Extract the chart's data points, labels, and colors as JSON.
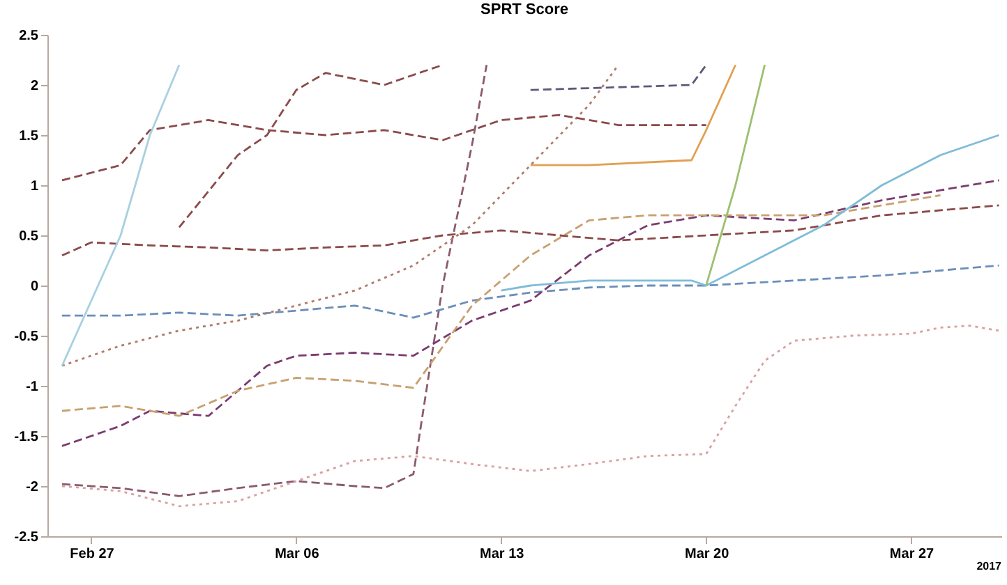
{
  "chart_data": {
    "type": "line",
    "title": "SPRT Score",
    "xlim": [
      "2017-02-25T12:00",
      "2017-03-30T02:00"
    ],
    "xticks": [
      {
        "value": "2017-02-27",
        "label": "Feb 27"
      },
      {
        "value": "2017-03-06",
        "label": "Mar 06"
      },
      {
        "value": "2017-03-13",
        "label": "Mar 13"
      },
      {
        "value": "2017-03-20",
        "label": "Mar 20"
      },
      {
        "value": "2017-03-27",
        "label": "Mar 27"
      }
    ],
    "ylim": [
      -2.5,
      2.5
    ],
    "yticks": [
      -2.5,
      -2,
      -1.5,
      -1,
      -0.5,
      0,
      0.5,
      1,
      1.5,
      2,
      2.5
    ],
    "grid": false,
    "annotations": [
      "2017"
    ],
    "series": [
      {
        "color": "#8b5a6e",
        "line_style": "dashed",
        "x": [
          "2017-02-26",
          "2017-02-28",
          "2017-03-02",
          "2017-03-04",
          "2017-03-06",
          "2017-03-08",
          "2017-03-09",
          "2017-03-10",
          "2017-03-11",
          "2017-03-12",
          "2017-03-12T12:00"
        ],
        "values": [
          -1.98,
          -2.02,
          -2.1,
          -2.02,
          -1.95,
          -2.0,
          -2.02,
          -1.88,
          0.0,
          1.4,
          2.2
        ]
      },
      {
        "color": "#d9a0a0",
        "line_style": "dotted",
        "x": [
          "2017-02-26",
          "2017-02-28",
          "2017-03-02",
          "2017-03-04",
          "2017-03-06",
          "2017-03-08",
          "2017-03-10",
          "2017-03-12",
          "2017-03-14",
          "2017-03-16",
          "2017-03-18",
          "2017-03-20",
          "2017-03-21",
          "2017-03-22",
          "2017-03-23",
          "2017-03-25",
          "2017-03-27",
          "2017-03-28",
          "2017-03-29",
          "2017-03-30"
        ],
        "values": [
          -2.0,
          -2.05,
          -2.2,
          -2.15,
          -1.95,
          -1.75,
          -1.7,
          -1.78,
          -1.85,
          -1.78,
          -1.7,
          -1.68,
          -1.2,
          -0.75,
          -0.55,
          -0.5,
          -0.48,
          -0.42,
          -0.4,
          -0.45
        ]
      },
      {
        "color": "#6a8fb8",
        "line_style": "dashed",
        "x": [
          "2017-02-26",
          "2017-02-28",
          "2017-03-02",
          "2017-03-04",
          "2017-03-06",
          "2017-03-08",
          "2017-03-10",
          "2017-03-12",
          "2017-03-14",
          "2017-03-16",
          "2017-03-18",
          "2017-03-20",
          "2017-03-23",
          "2017-03-26",
          "2017-03-30"
        ],
        "values": [
          -0.3,
          -0.3,
          -0.27,
          -0.3,
          -0.25,
          -0.2,
          -0.32,
          -0.15,
          -0.07,
          -0.02,
          0.0,
          0.0,
          0.05,
          0.1,
          0.2
        ]
      },
      {
        "color": "#7a3b6e",
        "line_style": "dashed",
        "x": [
          "2017-02-26",
          "2017-02-28",
          "2017-03-01",
          "2017-03-03",
          "2017-03-05",
          "2017-03-06",
          "2017-03-08",
          "2017-03-10",
          "2017-03-12",
          "2017-03-14",
          "2017-03-16",
          "2017-03-18",
          "2017-03-20",
          "2017-03-23",
          "2017-03-26",
          "2017-03-28",
          "2017-03-30"
        ],
        "values": [
          -1.6,
          -1.4,
          -1.25,
          -1.3,
          -0.8,
          -0.7,
          -0.67,
          -0.7,
          -0.35,
          -0.15,
          0.3,
          0.6,
          0.7,
          0.65,
          0.85,
          0.95,
          1.05
        ]
      },
      {
        "color": "#c8a070",
        "line_style": "dashed",
        "x": [
          "2017-02-26",
          "2017-02-28",
          "2017-03-02",
          "2017-03-04",
          "2017-03-06",
          "2017-03-08",
          "2017-03-10",
          "2017-03-12",
          "2017-03-14",
          "2017-03-16",
          "2017-03-18",
          "2017-03-20",
          "2017-03-24",
          "2017-03-28"
        ],
        "values": [
          -1.25,
          -1.2,
          -1.3,
          -1.05,
          -0.92,
          -0.95,
          -1.02,
          -0.2,
          0.3,
          0.65,
          0.7,
          0.7,
          0.7,
          0.9
        ]
      },
      {
        "color": "#b07a6a",
        "line_style": "dotted",
        "x": [
          "2017-02-26",
          "2017-02-28",
          "2017-03-02",
          "2017-03-04",
          "2017-03-06",
          "2017-03-08",
          "2017-03-10",
          "2017-03-12",
          "2017-03-14",
          "2017-03-16",
          "2017-03-17"
        ],
        "values": [
          -0.8,
          -0.6,
          -0.45,
          -0.35,
          -0.2,
          -0.05,
          0.2,
          0.6,
          1.2,
          1.8,
          2.2
        ]
      },
      {
        "color": "#8b4a4a",
        "line_style": "dashed",
        "x": [
          "2017-02-26",
          "2017-02-27",
          "2017-03-01",
          "2017-03-03",
          "2017-03-05",
          "2017-03-07",
          "2017-03-09",
          "2017-03-11",
          "2017-03-13",
          "2017-03-15",
          "2017-03-17",
          "2017-03-20",
          "2017-03-23",
          "2017-03-26",
          "2017-03-30"
        ],
        "values": [
          0.3,
          0.43,
          0.4,
          0.38,
          0.35,
          0.38,
          0.4,
          0.5,
          0.55,
          0.5,
          0.45,
          0.5,
          0.55,
          0.7,
          0.8
        ]
      },
      {
        "color": "#8b4a4a",
        "line_style": "dashed",
        "x": [
          "2017-02-26",
          "2017-02-28",
          "2017-03-01",
          "2017-03-03",
          "2017-03-05",
          "2017-03-07",
          "2017-03-09",
          "2017-03-11",
          "2017-03-13",
          "2017-03-15",
          "2017-03-17",
          "2017-03-20"
        ],
        "values": [
          1.05,
          1.2,
          1.55,
          1.65,
          1.55,
          1.5,
          1.55,
          1.45,
          1.65,
          1.7,
          1.6,
          1.6
        ]
      },
      {
        "color": "#8b4a4a",
        "line_style": "dashed",
        "x": [
          "2017-03-02",
          "2017-03-04",
          "2017-03-05",
          "2017-03-06",
          "2017-03-07",
          "2017-03-09",
          "2017-03-11"
        ],
        "values": [
          0.58,
          1.3,
          1.5,
          1.95,
          2.12,
          2.0,
          2.2
        ]
      },
      {
        "color": "#7fbcd8",
        "line_style": "solid",
        "x": [
          "2017-03-13",
          "2017-03-14",
          "2017-03-16",
          "2017-03-19T12:00",
          "2017-03-20",
          "2017-03-22",
          "2017-03-24",
          "2017-03-26",
          "2017-03-28",
          "2017-03-30"
        ],
        "values": [
          -0.05,
          0.0,
          0.05,
          0.05,
          0.0,
          0.3,
          0.6,
          1.0,
          1.3,
          1.5
        ]
      },
      {
        "color": "#e0a050",
        "line_style": "solid",
        "x": [
          "2017-03-14",
          "2017-03-16",
          "2017-03-19T12:00",
          "2017-03-20",
          "2017-03-21"
        ],
        "values": [
          1.2,
          1.2,
          1.25,
          1.55,
          2.2
        ]
      },
      {
        "color": "#5a5a7a",
        "line_style": "dashed",
        "x": [
          "2017-03-14",
          "2017-03-19T12:00",
          "2017-03-20"
        ],
        "values": [
          1.95,
          2.0,
          2.2
        ]
      },
      {
        "color": "#9cc070",
        "line_style": "solid",
        "x": [
          "2017-03-20",
          "2017-03-21",
          "2017-03-22"
        ],
        "values": [
          0.0,
          1.0,
          2.2
        ]
      },
      {
        "color": "#a8d0e0",
        "line_style": "solid",
        "x": [
          "2017-02-26",
          "2017-02-28",
          "2017-03-01",
          "2017-03-02"
        ],
        "values": [
          -0.8,
          0.5,
          1.5,
          2.2
        ]
      }
    ]
  }
}
